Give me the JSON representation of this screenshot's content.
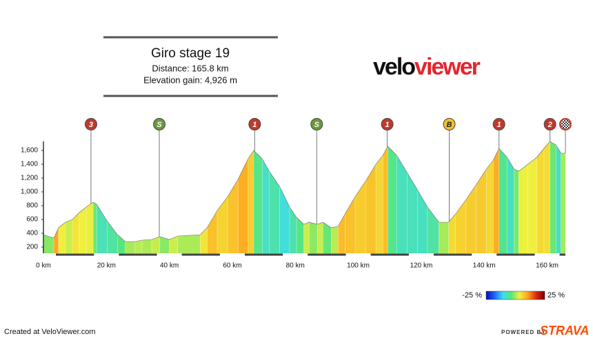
{
  "header": {
    "title": "Giro stage 19",
    "distance": "Distance: 165.8 km",
    "elevation_gain": "Elevation gain: 4,926 m"
  },
  "logo": {
    "part1": "velo",
    "part2": "viewer"
  },
  "chart_data": {
    "type": "elevation-profile",
    "x": [
      0,
      3.3,
      4.8,
      7,
      9.2,
      11.4,
      13.6,
      15.8,
      16.9,
      20.2,
      23.5,
      26,
      29,
      31.3,
      34.4,
      37,
      40,
      42.7,
      49.8,
      52,
      55.2,
      58.5,
      61.8,
      65,
      66.8,
      69.5,
      71.7,
      75,
      78.2,
      80.4,
      82.7,
      84.4,
      87,
      88.8,
      91.4,
      93.6,
      95.8,
      99,
      102.4,
      105.6,
      107.8,
      109.4,
      112.2,
      115.5,
      118.8,
      122,
      125.6,
      128.7,
      130.9,
      134.1,
      137.4,
      140.7,
      142.9,
      144.7,
      147.3,
      149.5,
      151,
      153.9,
      156.7,
      159,
      160.9,
      162.8,
      164.4,
      165.8
    ],
    "values": [
      380,
      330,
      480,
      560,
      600,
      700,
      780,
      850,
      820,
      580,
      380,
      280,
      280,
      300,
      310,
      350,
      310,
      360,
      380,
      480,
      730,
      930,
      1180,
      1480,
      1600,
      1480,
      1300,
      1080,
      780,
      630,
      530,
      560,
      530,
      560,
      480,
      500,
      680,
      930,
      1160,
      1400,
      1530,
      1660,
      1530,
      1280,
      1030,
      780,
      560,
      560,
      680,
      880,
      1100,
      1330,
      1460,
      1630,
      1500,
      1330,
      1300,
      1400,
      1500,
      1630,
      1730,
      1680,
      1560,
      1560
    ],
    "xlim": [
      0,
      165.8
    ],
    "ylim": [
      100,
      1700
    ],
    "xticks": [
      {
        "value": 0,
        "label": "0 km"
      },
      {
        "value": 20,
        "label": "20 km"
      },
      {
        "value": 40,
        "label": "40 km"
      },
      {
        "value": 60,
        "label": "60 km"
      },
      {
        "value": 80,
        "label": "80 km"
      },
      {
        "value": 100,
        "label": "100 km"
      },
      {
        "value": 120,
        "label": "120 km"
      },
      {
        "value": 140,
        "label": "140 km"
      },
      {
        "value": 160,
        "label": "160 km"
      }
    ],
    "yticks": [
      200,
      400,
      600,
      800,
      {
        "value": 1000,
        "label": "1,000"
      },
      {
        "value": 1200,
        "label": "1,200"
      },
      {
        "value": 1400,
        "label": "1,400"
      },
      {
        "value": 1600,
        "label": "1,600"
      }
    ],
    "markers": [
      {
        "label": "3",
        "x": 15.1,
        "color": "#c0392b"
      },
      {
        "label": "S",
        "x": 36.8,
        "color": "#6a9a3a"
      },
      {
        "label": "1",
        "x": 67.1,
        "color": "#c0392b"
      },
      {
        "label": "S",
        "x": 86.8,
        "color": "#6a9a3a"
      },
      {
        "label": "1",
        "x": 109.2,
        "color": "#c0392b"
      },
      {
        "label": "B",
        "x": 128.9,
        "color": "#f2c12e"
      },
      {
        "label": "1",
        "x": 144.7,
        "color": "#c0392b"
      },
      {
        "label": "2",
        "x": 160.9,
        "color": "#c0392b"
      },
      {
        "x": 165.8,
        "color": "#c0392b",
        "checkered": true
      }
    ],
    "colorbar": {
      "ticks": [
        {
          "value": -25,
          "label": "-25 %"
        },
        {
          "value": 25,
          "label": "25 %"
        }
      ],
      "colorscale": [
        "#0a0ab4",
        "#1e64ff",
        "#3cdcf0",
        "#5ae678",
        "#f0f03c",
        "#ffa01e",
        "#dc2814",
        "#780000"
      ]
    }
  },
  "footer": {
    "credit": "Created at VeloViewer.com",
    "powered": "POWERED BY",
    "brand": "STRAVA"
  }
}
